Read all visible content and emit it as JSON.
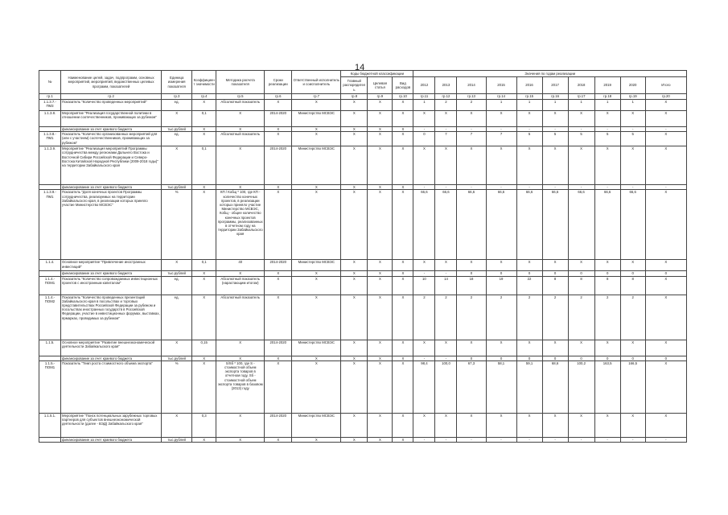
{
  "page_number": "14",
  "header": {
    "num": "№",
    "name": "Наименование целей, задач, подпрограмм, основных мероприятий, мероприятий, ведомственных целевых программ, показателей",
    "unit": "Единица измерения показателя",
    "coef": "Коэффициент значимости",
    "method": "Методика расчета показателя",
    "term": "Сроки реализации",
    "resp": "Ответственный исполнитель и соисполнитель",
    "codes_group": "Коды бюджетной классификации",
    "codes": [
      "Главный распорядитель",
      "Целевая статья",
      "Вид расходов"
    ],
    "years_group": "Значения по годам реализации",
    "years": [
      "2012",
      "2013",
      "2014",
      "2015",
      "2016",
      "2017",
      "2018",
      "2019",
      "2020",
      "Итого"
    ],
    "col_numbers": [
      "гр.1",
      "гр.2",
      "гр.3",
      "гр.4",
      "гр.5",
      "гр.6",
      "гр.7",
      "гр.8",
      "гр.9",
      "гр.10",
      "гр.11",
      "гр.12",
      "гр.13",
      "гр.14",
      "гр.15",
      "гр.16",
      "гр.17",
      "гр.18",
      "гр.19",
      "гр.20"
    ]
  },
  "rows": [
    {
      "cells": [
        "1.1.3.7.-ПМ3",
        "Показатель \"Количество проведенных мероприятий\"",
        "ед.",
        "X",
        "Абсолютный показатель",
        "X",
        "X",
        "X",
        "X",
        "X",
        "1",
        "2",
        "2",
        "1",
        "1",
        "1",
        "1",
        "1",
        "1",
        "X"
      ]
    },
    {
      "cells": [
        "1.1.3.8.",
        "Мероприятие \"Реализация государственной политики в отношении соотечественников, проживающих за рубежом\"",
        "X",
        "0,1",
        "X",
        "2014-2020",
        "Министерство МСВЭС",
        "X",
        "X",
        "X",
        "X",
        "X",
        "X",
        "X",
        "X",
        "X",
        "X",
        "X",
        "X",
        "X"
      ]
    },
    {
      "cells": [
        "",
        "финансирование за счет краевого бюджета",
        "тыс.рублей",
        "X",
        "X",
        "X",
        "X",
        "X",
        "X",
        "X",
        "-",
        "-",
        "-",
        "-",
        "-",
        "-",
        "-",
        "-",
        "-",
        "-"
      ]
    },
    {
      "cells": [
        "1.1.3.8.-ПМ1",
        "Показатель \"Количество организованных мероприятий для (или с участием) соотечественников, проживающих за рубежом\"",
        "ед.",
        "X",
        "Абсолютный показатель",
        "X",
        "X",
        "X",
        "X",
        "X",
        "0",
        "7",
        "7",
        "7",
        "5",
        "5",
        "5",
        "5",
        "5",
        "X"
      ]
    },
    {
      "cells": [
        "1.1.3.9.",
        "Мероприятие \"Реализация мероприятий Программы сотрудничества между регионами Дальнего Востока и Восточной Сибири Российской Федерации и Северо-Востока Китайской Народной Республики (2009-2018 годы)\" на территории Забайкальского края",
        "X",
        "0,1",
        "X",
        "2014-2020",
        "Министерство МСВЭС",
        "X",
        "X",
        "X",
        "X",
        "X",
        "X",
        "X",
        "X",
        "X",
        "X",
        "X",
        "X",
        "X"
      ]
    },
    {
      "cells": [
        "",
        "финансирование за счет краевого бюджета",
        "тыс.рублей",
        "X",
        "X",
        "X",
        "X",
        "X",
        "X",
        "X",
        "-",
        "-",
        "-",
        "-",
        "-",
        "-",
        "-",
        "-",
        "-",
        "-"
      ]
    },
    {
      "cells": [
        "1.1.3.9.-ПМ1",
        "Показатель \"Доля конечных проектов Программы сотрудничества, реализуемых на территории Забайкальского края, в реализации которых приняло участие Министерство МСВЭС\"",
        "%",
        "X",
        "КП / Кобщ * 100, где КП - количество конечных проектов, в реализации которых приняло участие Министерство МСВЭС, Кобщ - общее количество конечных проектов программы, реализованных в отчетном году на территории Забайкальского края",
        "X",
        "X",
        "X",
        "X",
        "X",
        "66,6",
        "66,6",
        "66,6",
        "66,6",
        "66,6",
        "66,6",
        "66,6",
        "66,6",
        "66,6",
        "X"
      ]
    },
    {
      "cells": [
        "1.1.4.",
        "Основное мероприятие \"Привлечение иностранных инвестиций\"",
        "X",
        "0,1",
        "40",
        "2014-2020",
        "Министерство МСВЭС",
        "X",
        "X",
        "X",
        "X",
        "X",
        "X",
        "X",
        "X",
        "X",
        "X",
        "X",
        "X",
        "X"
      ]
    },
    {
      "cells": [
        "",
        "финансирование за счет краевого бюджета",
        "тыс.рублей",
        "X",
        "X",
        "X",
        "X",
        "X",
        "X",
        "X",
        "-",
        "-",
        "0",
        "0",
        "0",
        "0",
        "0",
        "0",
        "0",
        "0"
      ]
    },
    {
      "cells": [
        "1.1.4.-ПОМ1",
        "Показатель \"Количество сопровождаемых инвестиционных проектов с иностранным капиталом\"",
        "ед.",
        "X",
        "Абсолютный показатель (нарастающим итогом)",
        "X",
        "X",
        "X",
        "X",
        "X",
        "10",
        "14",
        "18",
        "19",
        "22",
        "8",
        "8",
        "8",
        "8",
        "X"
      ]
    },
    {
      "cells": [
        "1.1.4.-ПОМ2",
        "Показатель \"Количество проведенных презентаций Забайкальского края в посольствах и торговых представительствах Российской Федерации за рубежом и посольствах иностранных государств в Российской Федерации, участие в инвестиционных форумах, выставках, ярмарках, проводимых за рубежом\"",
        "ед.",
        "X",
        "Абсолютный показатель",
        "X",
        "X",
        "X",
        "X",
        "X",
        "2",
        "2",
        "2",
        "2",
        "2",
        "2",
        "2",
        "2",
        "2",
        "X"
      ]
    },
    {
      "cells": [
        "1.1.5.",
        "Основное мероприятие \"Развитие внешнеэкономической деятельности Забайкальского края\"",
        "X",
        "0,15",
        "X",
        "2014-2020",
        "Министерство МСВЭС",
        "X",
        "X",
        "X",
        "X",
        "X",
        "X",
        "X",
        "X",
        "X",
        "X",
        "X",
        "X",
        "X"
      ]
    },
    {
      "cells": [
        "",
        "финансирование за счет краевого бюджета",
        "тыс.рублей",
        "X",
        "X",
        "X",
        "X",
        "X",
        "X",
        "X",
        "-",
        "-",
        "0",
        "0",
        "0",
        "0",
        "0",
        "0",
        "0",
        "0"
      ]
    },
    {
      "cells": [
        "1.1.5.-ПОМ1",
        "Показатель \"Темп роста стоимостного объема экспорта\"",
        "%",
        "X",
        "S/Sб * 100, где S - стоимостной объем экспорта товаров в отчетном году, Sб - стоимостной объем экспорта товаров в базовом (2013) году",
        "X",
        "X",
        "X",
        "X",
        "X",
        "98,4",
        "100,0",
        "67,3",
        "58,1",
        "59,1",
        "68,6",
        "100,2",
        "163,5",
        "166,5",
        "X"
      ]
    },
    {
      "cells": [
        "1.1.5.1.",
        "Мероприятие \"Поиск потенциальных зарубежных торговых партнеров для субъектов внешнеэкономической деятельности (далее - ВЭД) Забайкальского края\"",
        "X",
        "0,3",
        "X",
        "2014-2020",
        "Министерство МСВЭС",
        "X",
        "X",
        "X",
        "X",
        "X",
        "X",
        "X",
        "X",
        "X",
        "X",
        "X",
        "X",
        "X"
      ]
    },
    {
      "cells": [
        "",
        "финансирование за счет краевого бюджета",
        "тыс.рублей",
        "X",
        "X",
        "X",
        "X",
        "X",
        "X",
        "X",
        "-",
        "-",
        "-",
        "-",
        "-",
        "-",
        "-",
        "-",
        "-",
        "-"
      ]
    }
  ]
}
